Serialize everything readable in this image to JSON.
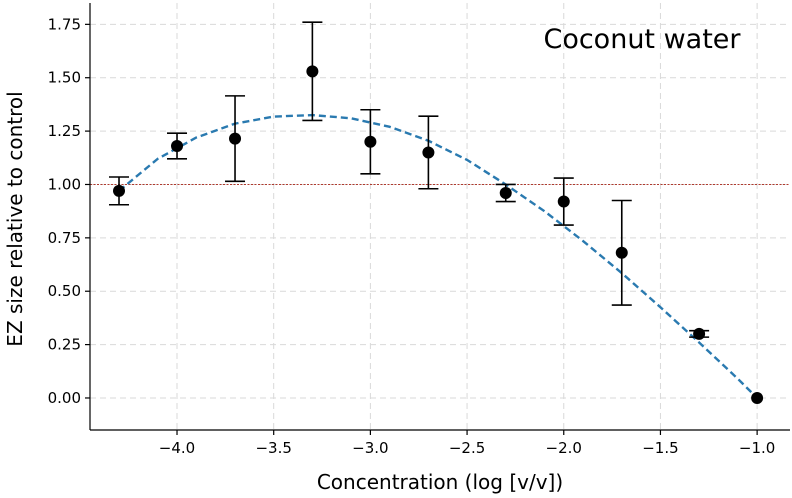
{
  "chart_data": {
    "type": "scatter",
    "title": "",
    "annotation": "Coconut water",
    "xlabel": "Concentration (log [v/v])",
    "ylabel": "EZ size relative to control",
    "xlim": [
      -4.45,
      -0.83
    ],
    "ylim": [
      -0.15,
      1.85
    ],
    "x_ticks": [
      -4.0,
      -3.5,
      -3.0,
      -2.5,
      -2.0,
      -1.5,
      -1.0
    ],
    "x_tick_labels": [
      "−4.0",
      "−3.5",
      "−3.0",
      "−2.5",
      "−2.0",
      "−1.5",
      "−1.0"
    ],
    "y_ticks": [
      0.0,
      0.25,
      0.5,
      0.75,
      1.0,
      1.25,
      1.5,
      1.75
    ],
    "y_tick_labels": [
      "0.00",
      "0.25",
      "0.50",
      "0.75",
      "1.00",
      "1.25",
      "1.50",
      "1.75"
    ],
    "grid": true,
    "points": [
      {
        "x": -4.3,
        "y": 0.97,
        "err": 0.065
      },
      {
        "x": -4.0,
        "y": 1.18,
        "err": 0.06
      },
      {
        "x": -3.7,
        "y": 1.215,
        "err": 0.2
      },
      {
        "x": -3.3,
        "y": 1.53,
        "err": 0.23
      },
      {
        "x": -3.0,
        "y": 1.2,
        "err": 0.15
      },
      {
        "x": -2.7,
        "y": 1.15,
        "err": 0.17
      },
      {
        "x": -2.3,
        "y": 0.96,
        "err": 0.04
      },
      {
        "x": -2.0,
        "y": 0.92,
        "err": 0.11
      },
      {
        "x": -1.7,
        "y": 0.68,
        "err": 0.245
      },
      {
        "x": -1.3,
        "y": 0.3,
        "err": 0.015
      },
      {
        "x": -1.0,
        "y": 0.0,
        "err": 0.0
      }
    ],
    "fit_curve": {
      "style": "dashed",
      "color": "#2a7ab0",
      "x": [
        -4.3,
        -4.1,
        -3.9,
        -3.7,
        -3.5,
        -3.3,
        -3.1,
        -2.9,
        -2.7,
        -2.5,
        -2.3,
        -2.1,
        -1.9,
        -1.7,
        -1.5,
        -1.3,
        -1.1,
        -1.0
      ],
      "y": [
        0.97,
        1.12,
        1.22,
        1.285,
        1.318,
        1.325,
        1.31,
        1.27,
        1.205,
        1.115,
        1.0,
        0.875,
        0.735,
        0.585,
        0.425,
        0.26,
        0.09,
        0.0
      ]
    },
    "reference_line": {
      "y": 1.0,
      "color": "#b03a2e",
      "style": "dotted"
    }
  }
}
